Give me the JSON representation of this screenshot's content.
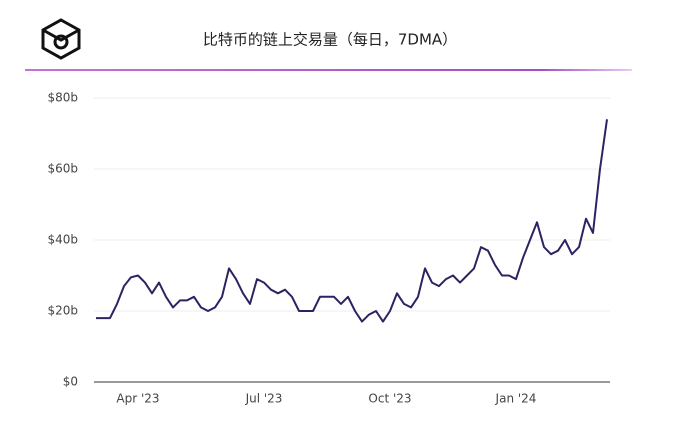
{
  "chart_data": {
    "type": "line",
    "title": "比特币的链上交易量（每日，7DMA）",
    "categories": [
      null,
      null,
      null,
      null,
      null,
      null,
      "Apr '23",
      null,
      null,
      null,
      null,
      null,
      null,
      null,
      null,
      null,
      null,
      null,
      null,
      null,
      null,
      null,
      null,
      null,
      "Jul '23",
      null,
      null,
      null,
      null,
      null,
      null,
      null,
      null,
      null,
      null,
      null,
      null,
      null,
      null,
      null,
      null,
      null,
      "Oct '23",
      null,
      null,
      null,
      null,
      null,
      null,
      null,
      null,
      null,
      null,
      null,
      null,
      null,
      null,
      null,
      null,
      null,
      "Jan '24",
      null,
      null,
      null,
      null,
      null,
      null,
      null,
      null,
      null,
      null,
      null,
      null,
      null
    ],
    "values": [
      18,
      18,
      18,
      22,
      27,
      29.5,
      30,
      28,
      25,
      28,
      24,
      21,
      23,
      23,
      24,
      21,
      20,
      21,
      24,
      32,
      29,
      25,
      22,
      29,
      28,
      26,
      25,
      26,
      24,
      20,
      20,
      20,
      24,
      24,
      24,
      22,
      24,
      20,
      17,
      19,
      20,
      17,
      20,
      25,
      22,
      21,
      24,
      32,
      28,
      27,
      29,
      30,
      28,
      30,
      32,
      38,
      37,
      33,
      30,
      30,
      29,
      35,
      40,
      45,
      38,
      36,
      37,
      40,
      36,
      38,
      46,
      42,
      60,
      74
    ],
    "color": "#2b2461",
    "ylim": [
      0,
      80
    ],
    "yticks": [
      {
        "value": 0,
        "label": "$0"
      },
      {
        "value": 20,
        "label": "$20b"
      },
      {
        "value": 40,
        "label": "$40b"
      },
      {
        "value": 60,
        "label": "$60b"
      },
      {
        "value": 80,
        "label": "$80b"
      }
    ],
    "grid": true
  }
}
